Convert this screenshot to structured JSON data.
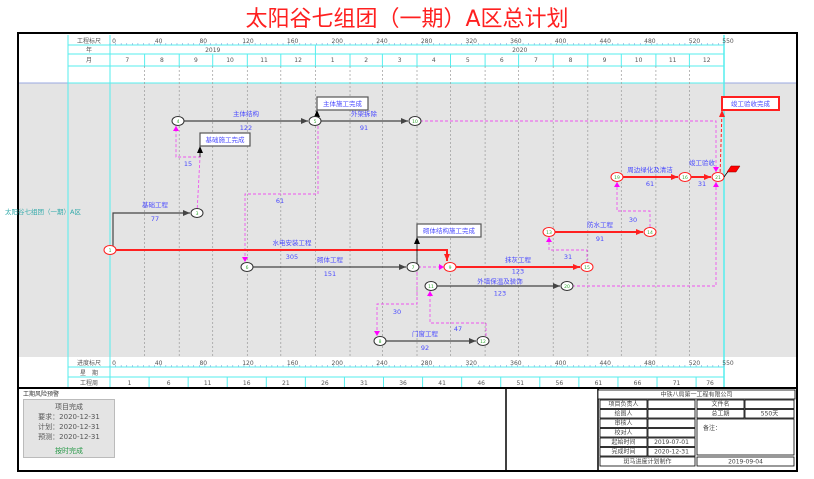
{
  "title": "太阳谷七组团（一期）A区总计划",
  "header": {
    "scale_label": "工程标尺",
    "year_label": "年",
    "month_label": "月",
    "scale_ticks": [
      "0",
      "40",
      "80",
      "120",
      "160",
      "200",
      "240",
      "280",
      "320",
      "360",
      "400",
      "440",
      "480",
      "520",
      "550"
    ],
    "years": [
      "2019",
      "2020"
    ],
    "months": [
      "7",
      "8",
      "9",
      "10",
      "11",
      "12",
      "1",
      "2",
      "3",
      "4",
      "5",
      "6",
      "7",
      "8",
      "9",
      "10",
      "11",
      "12"
    ]
  },
  "footer_rows": {
    "progress_scale_label": "进度标尺",
    "weekday_label": "星　期",
    "week_label": "工程周",
    "weeks": [
      "1",
      "6",
      "11",
      "16",
      "21",
      "26",
      "31",
      "36",
      "41",
      "46",
      "51",
      "56",
      "61",
      "66",
      "71",
      "76"
    ]
  },
  "row_label": "太阳谷七组团（一期）A区",
  "chart_data": {
    "type": "network",
    "nodes": [
      "1",
      "3",
      "4",
      "5",
      "10",
      "6",
      "7",
      "9",
      "8",
      "12",
      "11",
      "20",
      "15",
      "13",
      "14",
      "19",
      "16",
      "21"
    ],
    "activities": [
      {
        "name": "水电安装工程",
        "duration": "305",
        "from": "1",
        "to": "9",
        "critical": true
      },
      {
        "name": "基础工程",
        "duration": "77",
        "from": "1",
        "to": "3",
        "critical": false
      },
      {
        "name": "主体结构",
        "duration": "122",
        "from": "4",
        "to": "5",
        "critical": false
      },
      {
        "name": "外架拆除",
        "duration": "91",
        "from": "5",
        "to": "10",
        "critical": false
      },
      {
        "name": "砌体工程",
        "duration": "151",
        "from": "6",
        "to": "7",
        "critical": false
      },
      {
        "name": "抹灰工程",
        "duration": "123",
        "from": "9",
        "to": "15",
        "critical": true
      },
      {
        "name": "外墙保温及装饰",
        "duration": "123",
        "from": "11",
        "to": "20",
        "critical": false
      },
      {
        "name": "门窗工程",
        "duration": "92",
        "from": "8",
        "to": "12",
        "critical": false
      },
      {
        "name": "防水工程",
        "duration": "91",
        "from": "13",
        "to": "14",
        "critical": true
      },
      {
        "name": "周边绿化及清洁",
        "duration": "61",
        "from": "19",
        "to": "16",
        "critical": true
      },
      {
        "name": "竣工验收",
        "duration": "31",
        "from": "16",
        "to": "21",
        "critical": true
      }
    ],
    "lags": [
      "15",
      "61",
      "30",
      "47",
      "31",
      "30"
    ],
    "milestones": [
      "基础施工完成",
      "主体施工完成",
      "砌体结构施工完成",
      "竣工验收完成"
    ],
    "colors": {
      "critical": "#ff2020",
      "normal": "#444444",
      "dummy": "#ee55ee",
      "text": "#4a4aff",
      "grid": "#55eeee",
      "background": "#e4e4e4"
    }
  },
  "warning": {
    "title": "工期风险预警",
    "heading": "项目完成",
    "required": "要求：2020-12-31",
    "planned": "计划：2020-12-31",
    "forecast": "预测：2020-12-31",
    "status": "按时完成"
  },
  "title_block": {
    "company": "中铁八局第一工程有限公司",
    "project_manager": "项目负责人",
    "file_name": "文件名",
    "drawer": "绘图人",
    "total_duration_label": "总工期",
    "total_duration": "550天",
    "reviewer": "审核人",
    "remarks": "备注：",
    "checker": "校对人",
    "start_label": "起始时间",
    "start": "2019-07-01",
    "end_label": "完成时间",
    "end": "2020-12-31",
    "maker": "斑马进度计划制作",
    "date": "2019-09-04"
  }
}
